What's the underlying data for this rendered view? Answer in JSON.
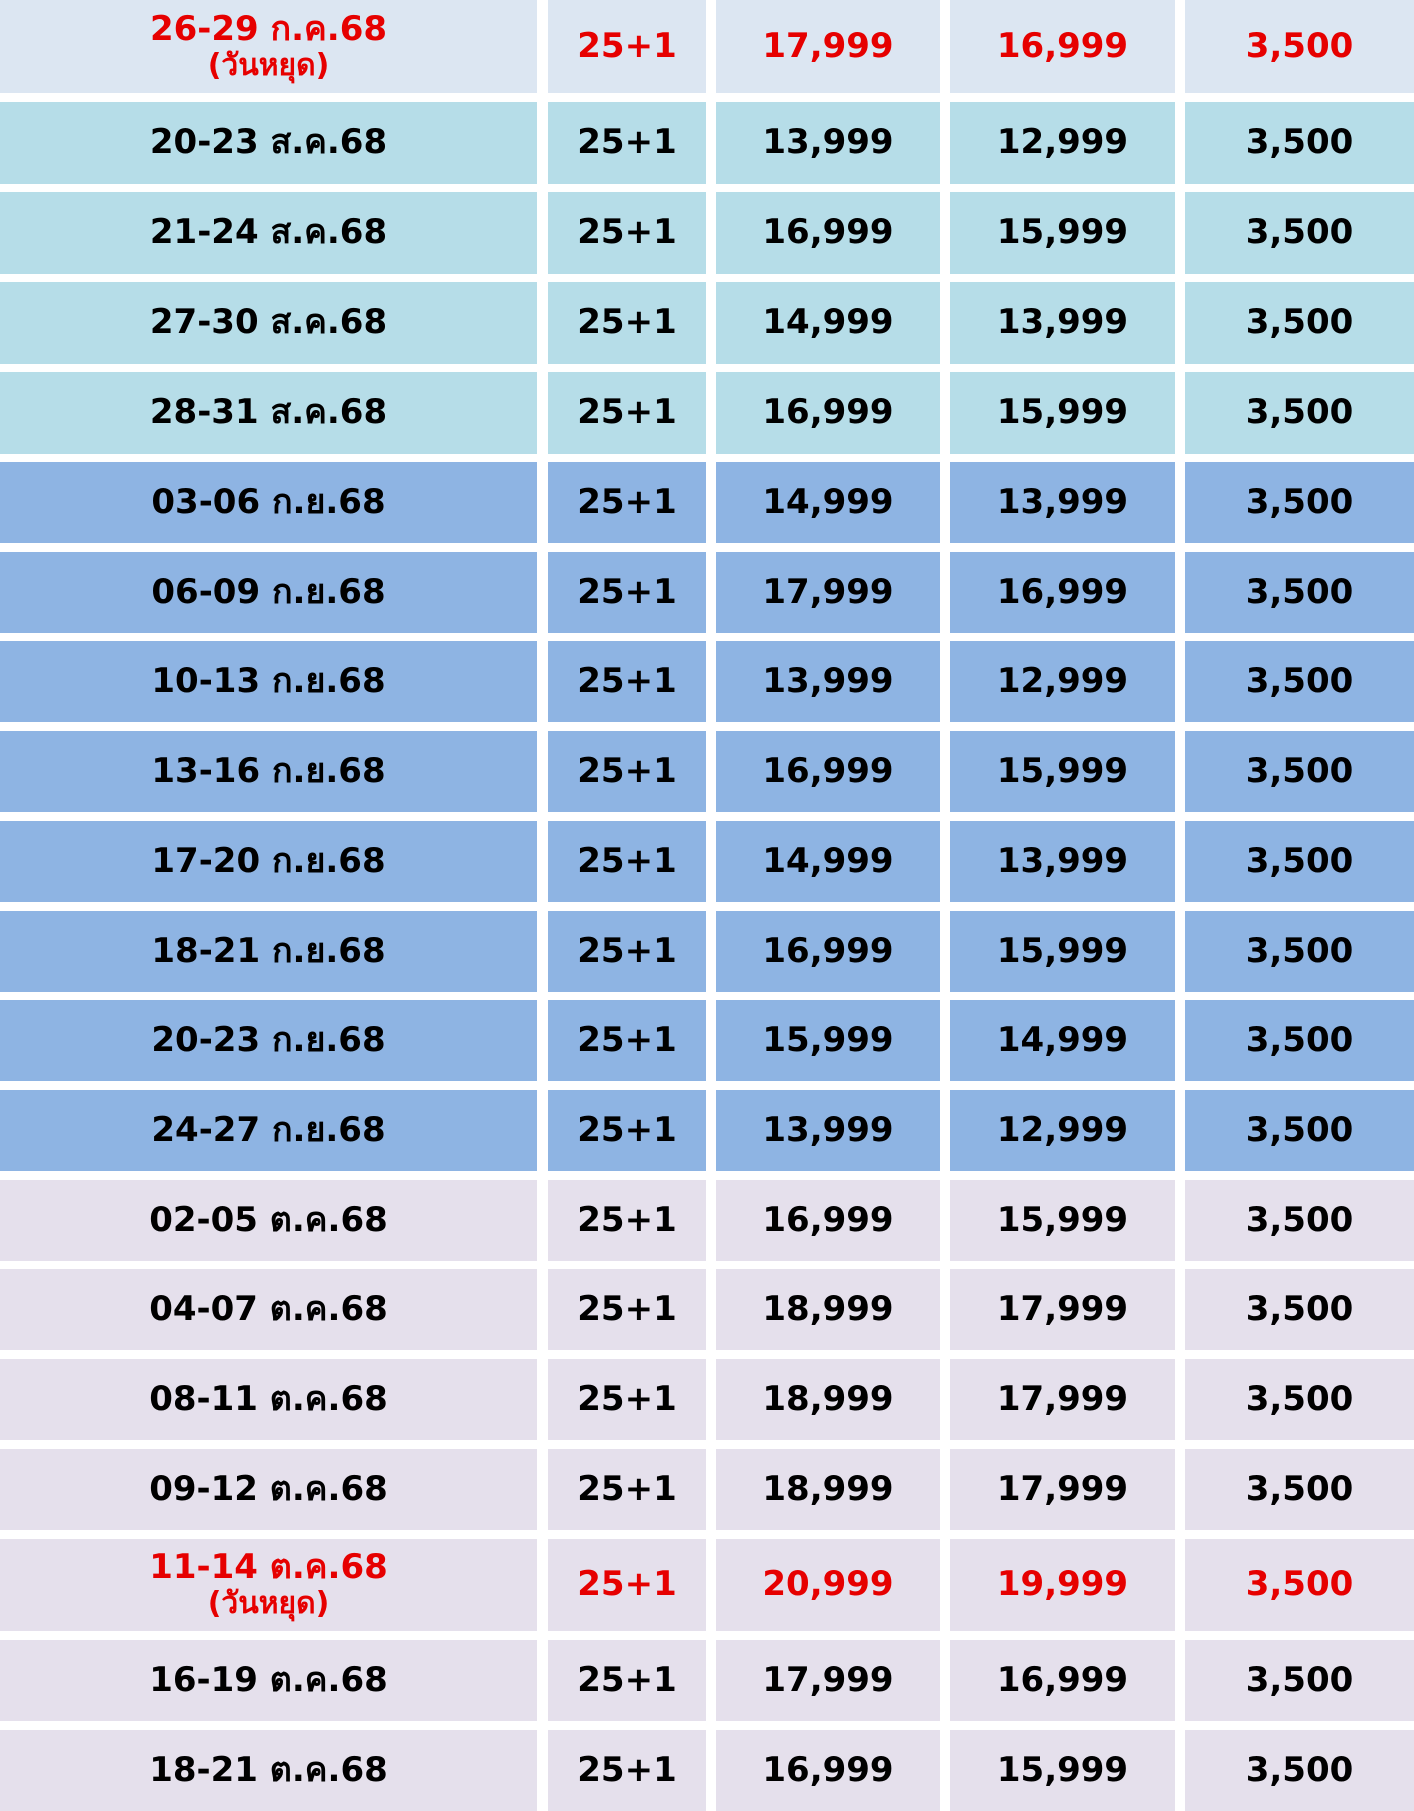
{
  "table": {
    "colors": {
      "jul": "#dce6f2",
      "aug": "#b6dde8",
      "sep": "#8eb4e3",
      "oct": "#e5e0ec",
      "holiday_text": "#e60000"
    },
    "rows": [
      {
        "period": "26-29 ก.ค.68",
        "note": "(วันหยุด)",
        "seats": "25+1",
        "price_a": "17,999",
        "price_b": "16,999",
        "price_c": "3,500",
        "band": "jul",
        "holiday": true
      },
      {
        "period": "20-23 ส.ค.68",
        "note": "",
        "seats": "25+1",
        "price_a": "13,999",
        "price_b": "12,999",
        "price_c": "3,500",
        "band": "aug",
        "holiday": false
      },
      {
        "period": "21-24 ส.ค.68",
        "note": "",
        "seats": "25+1",
        "price_a": "16,999",
        "price_b": "15,999",
        "price_c": "3,500",
        "band": "aug",
        "holiday": false
      },
      {
        "period": "27-30 ส.ค.68",
        "note": "",
        "seats": "25+1",
        "price_a": "14,999",
        "price_b": "13,999",
        "price_c": "3,500",
        "band": "aug",
        "holiday": false
      },
      {
        "period": "28-31 ส.ค.68",
        "note": "",
        "seats": "25+1",
        "price_a": "16,999",
        "price_b": "15,999",
        "price_c": "3,500",
        "band": "aug",
        "holiday": false
      },
      {
        "period": "03-06 ก.ย.68",
        "note": "",
        "seats": "25+1",
        "price_a": "14,999",
        "price_b": "13,999",
        "price_c": "3,500",
        "band": "sep",
        "holiday": false
      },
      {
        "period": "06-09 ก.ย.68",
        "note": "",
        "seats": "25+1",
        "price_a": "17,999",
        "price_b": "16,999",
        "price_c": "3,500",
        "band": "sep",
        "holiday": false
      },
      {
        "period": "10-13 ก.ย.68",
        "note": "",
        "seats": "25+1",
        "price_a": "13,999",
        "price_b": "12,999",
        "price_c": "3,500",
        "band": "sep",
        "holiday": false
      },
      {
        "period": "13-16 ก.ย.68",
        "note": "",
        "seats": "25+1",
        "price_a": "16,999",
        "price_b": "15,999",
        "price_c": "3,500",
        "band": "sep",
        "holiday": false
      },
      {
        "period": "17-20 ก.ย.68",
        "note": "",
        "seats": "25+1",
        "price_a": "14,999",
        "price_b": "13,999",
        "price_c": "3,500",
        "band": "sep",
        "holiday": false
      },
      {
        "period": "18-21 ก.ย.68",
        "note": "",
        "seats": "25+1",
        "price_a": "16,999",
        "price_b": "15,999",
        "price_c": "3,500",
        "band": "sep",
        "holiday": false
      },
      {
        "period": "20-23 ก.ย.68",
        "note": "",
        "seats": "25+1",
        "price_a": "15,999",
        "price_b": "14,999",
        "price_c": "3,500",
        "band": "sep",
        "holiday": false
      },
      {
        "period": "24-27 ก.ย.68",
        "note": "",
        "seats": "25+1",
        "price_a": "13,999",
        "price_b": "12,999",
        "price_c": "3,500",
        "band": "sep",
        "holiday": false
      },
      {
        "period": "02-05 ต.ค.68",
        "note": "",
        "seats": "25+1",
        "price_a": "16,999",
        "price_b": "15,999",
        "price_c": "3,500",
        "band": "oct",
        "holiday": false
      },
      {
        "period": "04-07 ต.ค.68",
        "note": "",
        "seats": "25+1",
        "price_a": "18,999",
        "price_b": "17,999",
        "price_c": "3,500",
        "band": "oct",
        "holiday": false
      },
      {
        "period": "08-11 ต.ค.68",
        "note": "",
        "seats": "25+1",
        "price_a": "18,999",
        "price_b": "17,999",
        "price_c": "3,500",
        "band": "oct",
        "holiday": false
      },
      {
        "period": "09-12 ต.ค.68",
        "note": "",
        "seats": "25+1",
        "price_a": "18,999",
        "price_b": "17,999",
        "price_c": "3,500",
        "band": "oct",
        "holiday": false
      },
      {
        "period": "11-14 ต.ค.68",
        "note": "(วันหยุด)",
        "seats": "25+1",
        "price_a": "20,999",
        "price_b": "19,999",
        "price_c": "3,500",
        "band": "oct",
        "holiday": true
      },
      {
        "period": "16-19 ต.ค.68",
        "note": "",
        "seats": "25+1",
        "price_a": "17,999",
        "price_b": "16,999",
        "price_c": "3,500",
        "band": "oct",
        "holiday": false
      },
      {
        "period": "18-21 ต.ค.68",
        "note": "",
        "seats": "25+1",
        "price_a": "16,999",
        "price_b": "15,999",
        "price_c": "3,500",
        "band": "oct",
        "holiday": false
      }
    ]
  }
}
